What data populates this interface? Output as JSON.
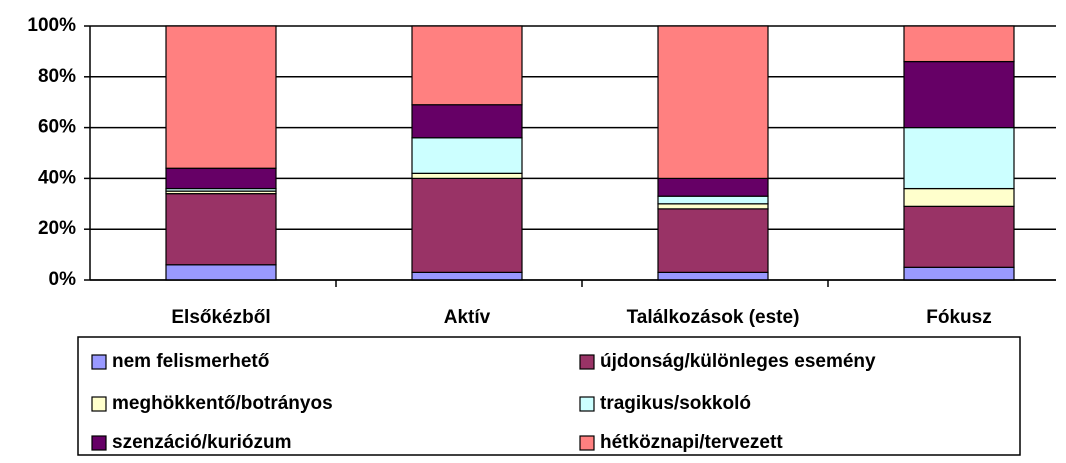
{
  "chart_data": {
    "type": "stacked_bar",
    "categories": [
      "Elsőkézből",
      "Aktív",
      "Találkozások (este)",
      "Fókusz"
    ],
    "series": [
      {
        "name": "nem felismerhető",
        "color": "#9999ff",
        "values": [
          6,
          3,
          3,
          5
        ]
      },
      {
        "name": "újdonság/különleges esemény",
        "color": "#993366",
        "values": [
          28,
          37,
          25,
          24
        ]
      },
      {
        "name": "meghökkentő/botrányos",
        "color": "#ffffcc",
        "values": [
          1,
          2,
          2,
          7
        ]
      },
      {
        "name": "tragikus/sokkoló",
        "color": "#ccffff",
        "values": [
          1,
          14,
          3,
          24
        ]
      },
      {
        "name": "szenzáció/kuriózum",
        "color": "#660066",
        "values": [
          8,
          13,
          7,
          26
        ]
      },
      {
        "name": "hétköznapi/tervezett",
        "color": "#ff8080",
        "values": [
          56,
          31,
          60,
          14
        ]
      }
    ],
    "ylim": [
      0,
      100
    ],
    "yticks": [
      {
        "value": 0,
        "label": "0%"
      },
      {
        "value": 20,
        "label": "20%"
      },
      {
        "value": 40,
        "label": "40%"
      },
      {
        "value": 60,
        "label": "60%"
      },
      {
        "value": 80,
        "label": "80%"
      },
      {
        "value": 100,
        "label": "100%"
      }
    ],
    "grid": true,
    "legend": "bottom"
  }
}
